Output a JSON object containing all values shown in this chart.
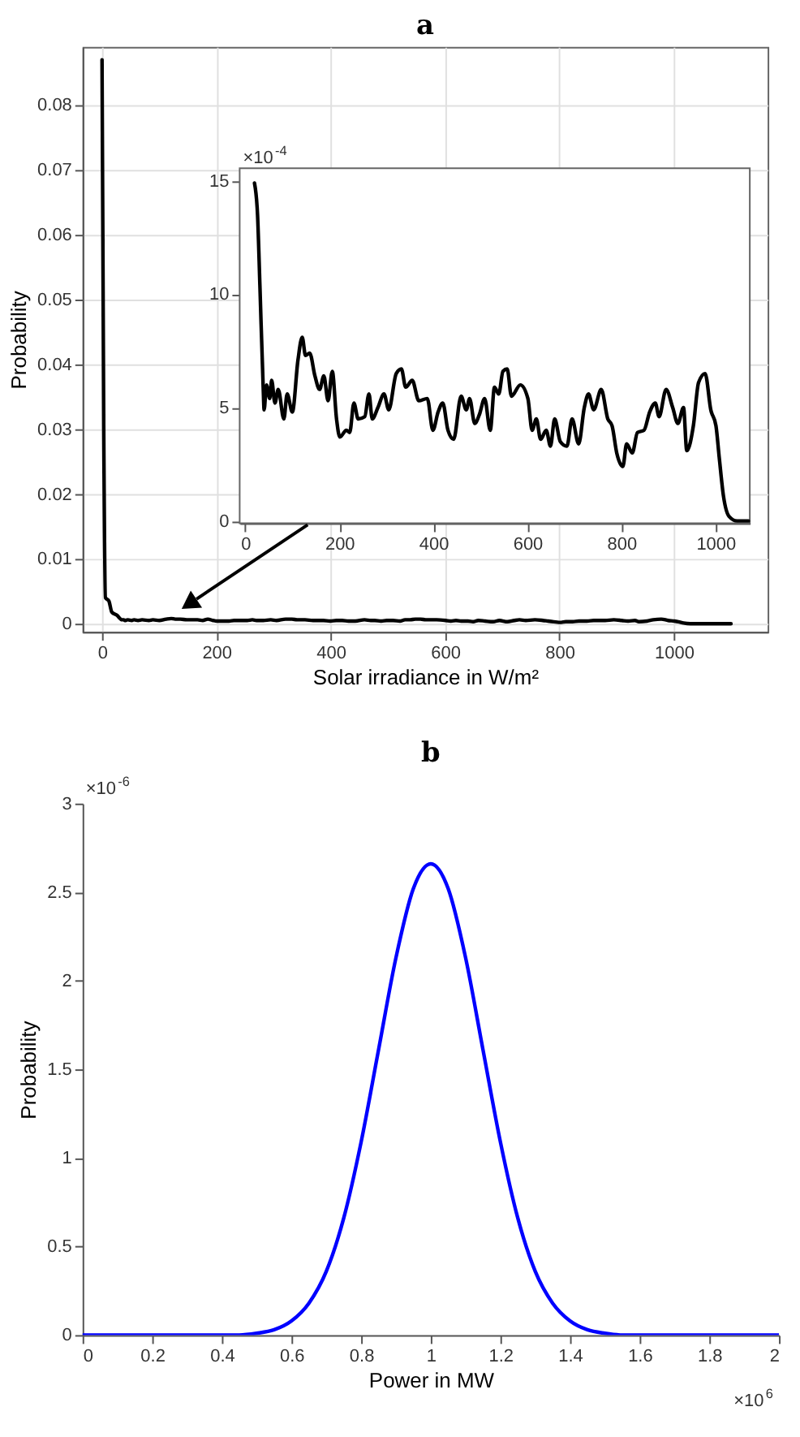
{
  "chart_data": [
    {
      "type": "line",
      "title": "a",
      "xlabel": "Solar irradiance in W/m²",
      "ylabel": "Probability",
      "color": "#000000",
      "grid": true,
      "xlim": [
        -34,
        1164
      ],
      "ylim": [
        -0.00125,
        0.089
      ],
      "xticks": [
        0,
        200,
        400,
        600,
        800,
        1000
      ],
      "yticks": [
        0,
        0.01,
        0.02,
        0.03,
        0.04,
        0.05,
        0.06,
        0.07,
        0.08
      ],
      "x": [
        0,
        3,
        6,
        12,
        17,
        26,
        35,
        38,
        40,
        45,
        52,
        56,
        63,
        70,
        82,
        89,
        100,
        112,
        121,
        128,
        137,
        148,
        158,
        167,
        176,
        185,
        194,
        201,
        215,
        222,
        231,
        240,
        254,
        263,
        270,
        282,
        295,
        305,
        321,
        332,
        341,
        355,
        369,
        387,
        399,
        410,
        420,
        431,
        443,
        459,
        470,
        477,
        488,
        498,
        509,
        521,
        530,
        539,
        548,
        557,
        566,
        585,
        601,
        610,
        619,
        628,
        640,
        649,
        658,
        670,
        684,
        695,
        709,
        721,
        730,
        741,
        757,
        771,
        780,
        790,
        803,
        811,
        823,
        834,
        848,
        860,
        872,
        880,
        895,
        909,
        920,
        932,
        939,
        953,
        964,
        978,
        990,
        1001,
        1008,
        1017,
        1029,
        1046,
        1072,
        1100
      ],
      "values": [
        0.087,
        0.03,
        0.004,
        0.0035,
        0.0018,
        0.0013,
        0.0006,
        0.0006,
        0.0005,
        0.0006,
        0.0005,
        0.0006,
        0.0005,
        0.0006,
        0.0005,
        0.0006,
        0.0005,
        0.0007,
        0.0008,
        0.0007,
        0.0007,
        0.0006,
        0.0006,
        0.0006,
        0.0005,
        0.0007,
        0.0005,
        0.0004,
        0.0004,
        0.0004,
        0.0005,
        0.0005,
        0.0005,
        0.0006,
        0.0005,
        0.0005,
        0.0006,
        0.0005,
        0.0007,
        0.0007,
        0.0006,
        0.0006,
        0.0005,
        0.0005,
        0.0004,
        0.0005,
        0.0005,
        0.0004,
        0.0004,
        0.0006,
        0.0005,
        0.0005,
        0.0004,
        0.0005,
        0.0005,
        0.0004,
        0.0006,
        0.0006,
        0.0007,
        0.0007,
        0.0006,
        0.0006,
        0.0005,
        0.0004,
        0.0005,
        0.0004,
        0.0004,
        0.0003,
        0.0005,
        0.0004,
        0.0003,
        0.0005,
        0.0003,
        0.0005,
        0.0006,
        0.0005,
        0.0006,
        0.0005,
        0.0004,
        0.0003,
        0.0002,
        0.0003,
        0.0003,
        0.0004,
        0.0004,
        0.0005,
        0.0005,
        0.0005,
        0.0006,
        0.0005,
        0.0004,
        0.0005,
        0.0003,
        0.0004,
        0.0006,
        0.0007,
        0.0005,
        0.0004,
        0.0003,
        0.0001,
        0,
        0,
        0,
        0
      ]
    },
    {
      "type": "line",
      "color": "#000000",
      "grid": false,
      "annotations": [
        "×10$^{-4}$"
      ],
      "xlim": [
        -12,
        1073
      ],
      "ylim": [
        -0.1,
        15.55
      ],
      "xticks": [
        0,
        200,
        400,
        600,
        800,
        1000
      ],
      "yticks": [
        0,
        5,
        10,
        15
      ],
      "x": [
        19.5,
        26,
        31,
        38,
        40,
        45,
        52,
        56,
        63,
        70,
        82,
        89,
        100,
        112,
        121,
        128,
        137,
        148,
        158,
        167,
        176,
        185,
        194,
        201,
        215,
        222,
        231,
        240,
        254,
        263,
        270,
        282,
        295,
        305,
        321,
        332,
        341,
        355,
        369,
        387,
        399,
        410,
        420,
        431,
        443,
        459,
        470,
        477,
        488,
        498,
        509,
        521,
        530,
        539,
        548,
        557,
        566,
        585,
        601,
        610,
        619,
        628,
        640,
        649,
        658,
        670,
        684,
        695,
        709,
        721,
        730,
        741,
        757,
        771,
        780,
        790,
        803,
        811,
        823,
        834,
        848,
        860,
        872,
        880,
        895,
        909,
        920,
        932,
        939,
        953,
        964,
        978,
        990,
        1001,
        1008,
        1017,
        1029,
        1046,
        1070
      ],
      "values": [
        14.9,
        13.5,
        10.4,
        5.9,
        4.9,
        6.0,
        5.4,
        6.2,
        5.2,
        5.8,
        4.5,
        5.6,
        4.8,
        7.1,
        8.1,
        7.3,
        7.4,
        6.4,
        5.8,
        6.4,
        5.3,
        6.6,
        4.5,
        3.7,
        4.0,
        3.9,
        5.2,
        4.5,
        4.6,
        5.6,
        4.5,
        5.0,
        5.6,
        4.9,
        6.5,
        6.7,
        5.9,
        6.2,
        5.3,
        5.4,
        4.0,
        4.8,
        5.2,
        4.0,
        3.6,
        5.5,
        4.9,
        5.4,
        4.3,
        4.7,
        5.4,
        4.0,
        5.9,
        5.6,
        6.6,
        6.7,
        5.5,
        6.0,
        5.4,
        4.0,
        4.5,
        3.6,
        4.0,
        3.3,
        4.5,
        3.5,
        3.3,
        4.5,
        3.4,
        5.0,
        5.6,
        4.9,
        5.8,
        4.5,
        4.2,
        3.0,
        2.4,
        3.4,
        3.0,
        3.9,
        4.0,
        4.8,
        5.2,
        4.6,
        5.8,
        5.0,
        4.3,
        5.0,
        3.1,
        4.2,
        6.1,
        6.5,
        4.9,
        4.2,
        2.8,
        1.1,
        0.2,
        0,
        0
      ]
    },
    {
      "type": "line",
      "title": "b",
      "xlabel": "Power in MW",
      "ylabel": "Probability",
      "color": "#0000ff",
      "grid": false,
      "annotations": [
        "×10$^{-6}$",
        "×10$^{6}$"
      ],
      "xlim": [
        0,
        2
      ],
      "ylim": [
        0,
        3
      ],
      "xticks": [
        0,
        0.2,
        0.4,
        0.6,
        0.8,
        1,
        1.2,
        1.4,
        1.6,
        1.8,
        2
      ],
      "yticks": [
        0,
        0.5,
        1,
        1.5,
        2,
        2.5,
        3
      ],
      "x": [
        0,
        0.3,
        0.4,
        0.45,
        0.5,
        0.55,
        0.6,
        0.65,
        0.7,
        0.75,
        0.8,
        0.85,
        0.9,
        0.95,
        1,
        1.05,
        1.1,
        1.15,
        1.2,
        1.25,
        1.3,
        1.35,
        1.4,
        1.45,
        1.5,
        1.55,
        1.6,
        1.7,
        2
      ],
      "values": [
        0,
        0,
        0,
        0,
        0.01,
        0.03,
        0.08,
        0.18,
        0.36,
        0.66,
        1.09,
        1.61,
        2.13,
        2.52,
        2.66,
        2.52,
        2.13,
        1.61,
        1.09,
        0.66,
        0.36,
        0.18,
        0.08,
        0.03,
        0.01,
        0,
        0,
        0,
        0
      ]
    }
  ]
}
